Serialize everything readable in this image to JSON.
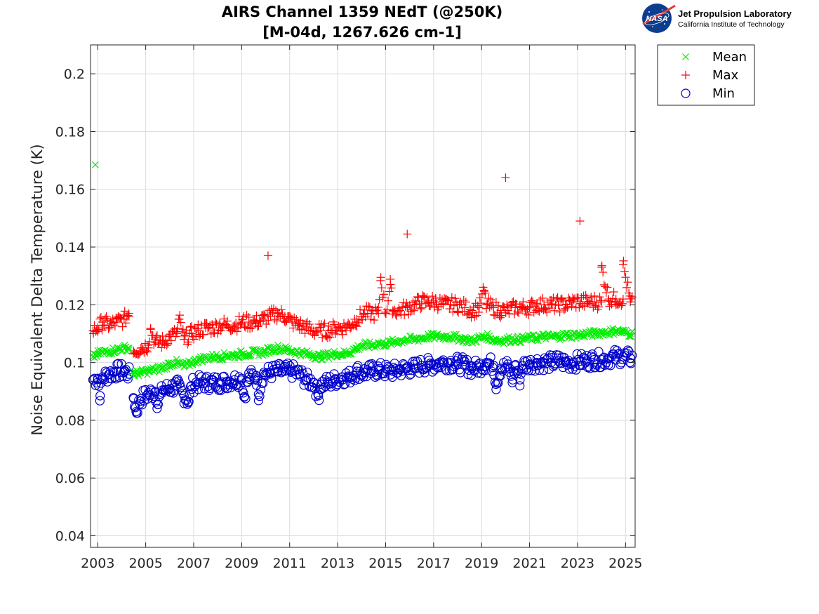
{
  "logo": {
    "badge_text": "NASA",
    "org_name": "Jet Propulsion Laboratory",
    "org_sub": "California Institute of Technology"
  },
  "chart_data": {
    "type": "scatter",
    "title_line1": "AIRS Channel 1359 NEdT (@250K)",
    "title_line2": "[M-04d, 1267.626 cm-1]",
    "xlabel": "",
    "ylabel": "Noise Equivalent Delta Temperature (K)",
    "xlim": [
      2002.7,
      2025.4
    ],
    "ylim": [
      0.036,
      0.21
    ],
    "x_ticks": [
      2003,
      2005,
      2007,
      2009,
      2011,
      2013,
      2015,
      2017,
      2019,
      2021,
      2023,
      2025
    ],
    "x_tick_labels": [
      "2003",
      "2005",
      "2007",
      "2009",
      "2011",
      "2013",
      "2015",
      "2017",
      "2019",
      "2021",
      "2023",
      "2025"
    ],
    "y_ticks": [
      0.04,
      0.06,
      0.08,
      0.1,
      0.12,
      0.14,
      0.16,
      0.18,
      0.2
    ],
    "y_tick_labels": [
      "0.04",
      "0.06",
      "0.08",
      "0.1",
      "0.12",
      "0.14",
      "0.16",
      "0.18",
      "0.2"
    ],
    "grid": true,
    "legend_position": "outside-top-right",
    "series": [
      {
        "name": "Mean",
        "marker": "x",
        "color": "#00ee00",
        "points": [
          [
            2002.8,
            0.102
          ],
          [
            2003.0,
            0.103
          ],
          [
            2003.2,
            0.1035
          ],
          [
            2003.5,
            0.104
          ],
          [
            2003.8,
            0.1045
          ],
          [
            2004.1,
            0.105
          ],
          [
            2004.3,
            0.105
          ],
          [
            2004.5,
            0.096
          ],
          [
            2004.8,
            0.0965
          ],
          [
            2005.1,
            0.097
          ],
          [
            2005.4,
            0.0975
          ],
          [
            2005.7,
            0.098
          ],
          [
            2006.0,
            0.0995
          ],
          [
            2006.3,
            0.1
          ],
          [
            2006.6,
            0.0985
          ],
          [
            2006.9,
            0.1
          ],
          [
            2007.2,
            0.101
          ],
          [
            2007.5,
            0.1015
          ],
          [
            2007.8,
            0.102
          ],
          [
            2008.1,
            0.102
          ],
          [
            2008.4,
            0.1025
          ],
          [
            2008.7,
            0.1025
          ],
          [
            2009.0,
            0.103
          ],
          [
            2009.3,
            0.103
          ],
          [
            2009.6,
            0.1035
          ],
          [
            2009.9,
            0.1035
          ],
          [
            2010.2,
            0.1045
          ],
          [
            2010.5,
            0.105
          ],
          [
            2010.8,
            0.1045
          ],
          [
            2011.1,
            0.104
          ],
          [
            2011.4,
            0.1035
          ],
          [
            2011.7,
            0.103
          ],
          [
            2012.0,
            0.1025
          ],
          [
            2012.3,
            0.102
          ],
          [
            2012.6,
            0.1025
          ],
          [
            2012.9,
            0.103
          ],
          [
            2013.2,
            0.103
          ],
          [
            2013.5,
            0.1035
          ],
          [
            2013.8,
            0.105
          ],
          [
            2014.1,
            0.106
          ],
          [
            2014.4,
            0.106
          ],
          [
            2014.7,
            0.1065
          ],
          [
            2015.0,
            0.1065
          ],
          [
            2015.3,
            0.107
          ],
          [
            2015.6,
            0.1075
          ],
          [
            2015.9,
            0.108
          ],
          [
            2016.2,
            0.108
          ],
          [
            2016.5,
            0.1085
          ],
          [
            2016.8,
            0.109
          ],
          [
            2017.1,
            0.109
          ],
          [
            2017.4,
            0.109
          ],
          [
            2017.7,
            0.109
          ],
          [
            2018.0,
            0.1085
          ],
          [
            2018.3,
            0.108
          ],
          [
            2018.6,
            0.1075
          ],
          [
            2018.9,
            0.1085
          ],
          [
            2019.2,
            0.109
          ],
          [
            2019.5,
            0.108
          ],
          [
            2019.8,
            0.1075
          ],
          [
            2020.1,
            0.108
          ],
          [
            2020.4,
            0.108
          ],
          [
            2020.7,
            0.108
          ],
          [
            2021.0,
            0.1085
          ],
          [
            2021.3,
            0.1085
          ],
          [
            2021.6,
            0.109
          ],
          [
            2021.9,
            0.109
          ],
          [
            2022.2,
            0.109
          ],
          [
            2022.5,
            0.1095
          ],
          [
            2022.8,
            0.1095
          ],
          [
            2023.1,
            0.1095
          ],
          [
            2023.4,
            0.11
          ],
          [
            2023.7,
            0.11
          ],
          [
            2024.0,
            0.1105
          ],
          [
            2024.3,
            0.1105
          ],
          [
            2024.6,
            0.111
          ],
          [
            2024.9,
            0.1105
          ],
          [
            2025.2,
            0.11
          ],
          [
            2002.9,
            0.1685
          ]
        ]
      },
      {
        "name": "Max",
        "marker": "+",
        "color": "#ff0000",
        "points": [
          [
            2002.8,
            0.111
          ],
          [
            2003.0,
            0.112
          ],
          [
            2003.2,
            0.114
          ],
          [
            2003.5,
            0.113
          ],
          [
            2003.8,
            0.114
          ],
          [
            2004.1,
            0.115
          ],
          [
            2004.3,
            0.117
          ],
          [
            2004.5,
            0.104
          ],
          [
            2004.8,
            0.105
          ],
          [
            2005.1,
            0.106
          ],
          [
            2005.4,
            0.107
          ],
          [
            2005.7,
            0.107
          ],
          [
            2006.0,
            0.109
          ],
          [
            2006.3,
            0.11
          ],
          [
            2006.6,
            0.108
          ],
          [
            2006.9,
            0.11
          ],
          [
            2007.2,
            0.111
          ],
          [
            2007.5,
            0.112
          ],
          [
            2007.8,
            0.112
          ],
          [
            2008.1,
            0.113
          ],
          [
            2008.4,
            0.113
          ],
          [
            2008.7,
            0.113
          ],
          [
            2009.0,
            0.114
          ],
          [
            2009.3,
            0.114
          ],
          [
            2009.6,
            0.114
          ],
          [
            2009.9,
            0.115
          ],
          [
            2010.2,
            0.116
          ],
          [
            2010.5,
            0.117
          ],
          [
            2010.8,
            0.116
          ],
          [
            2011.1,
            0.114
          ],
          [
            2011.4,
            0.113
          ],
          [
            2011.7,
            0.112
          ],
          [
            2012.0,
            0.111
          ],
          [
            2012.3,
            0.111
          ],
          [
            2012.6,
            0.111
          ],
          [
            2012.9,
            0.112
          ],
          [
            2013.2,
            0.112
          ],
          [
            2013.5,
            0.113
          ],
          [
            2013.8,
            0.115
          ],
          [
            2014.1,
            0.117
          ],
          [
            2014.4,
            0.117
          ],
          [
            2014.7,
            0.117
          ],
          [
            2015.0,
            0.117
          ],
          [
            2015.3,
            0.118
          ],
          [
            2015.6,
            0.118
          ],
          [
            2015.9,
            0.119
          ],
          [
            2016.2,
            0.12
          ],
          [
            2016.5,
            0.121
          ],
          [
            2016.8,
            0.121
          ],
          [
            2017.1,
            0.121
          ],
          [
            2017.4,
            0.12
          ],
          [
            2017.7,
            0.12
          ],
          [
            2018.0,
            0.12
          ],
          [
            2018.3,
            0.119
          ],
          [
            2018.6,
            0.118
          ],
          [
            2018.9,
            0.119
          ],
          [
            2019.2,
            0.12
          ],
          [
            2019.5,
            0.119
          ],
          [
            2019.8,
            0.118
          ],
          [
            2020.1,
            0.118
          ],
          [
            2020.4,
            0.119
          ],
          [
            2020.7,
            0.119
          ],
          [
            2021.0,
            0.119
          ],
          [
            2021.3,
            0.12
          ],
          [
            2021.6,
            0.12
          ],
          [
            2021.9,
            0.12
          ],
          [
            2022.2,
            0.12
          ],
          [
            2022.5,
            0.12
          ],
          [
            2022.8,
            0.121
          ],
          [
            2023.1,
            0.121
          ],
          [
            2023.4,
            0.121
          ],
          [
            2023.7,
            0.121
          ],
          [
            2024.0,
            0.121
          ],
          [
            2024.3,
            0.122
          ],
          [
            2024.6,
            0.122
          ],
          [
            2024.9,
            0.122
          ],
          [
            2025.2,
            0.121
          ],
          [
            2010.1,
            0.137
          ],
          [
            2014.8,
            0.1295
          ],
          [
            2015.2,
            0.127
          ],
          [
            2015.9,
            0.1445
          ],
          [
            2020.0,
            0.164
          ],
          [
            2023.1,
            0.149
          ],
          [
            2024.0,
            0.133
          ],
          [
            2024.9,
            0.134
          ],
          [
            2019.1,
            0.125
          ],
          [
            2005.2,
            0.1115
          ],
          [
            2006.4,
            0.115
          ]
        ]
      },
      {
        "name": "Min",
        "marker": "o",
        "color": "#0000cc",
        "points": [
          [
            2002.8,
            0.094
          ],
          [
            2003.0,
            0.0945
          ],
          [
            2003.2,
            0.095
          ],
          [
            2003.5,
            0.096
          ],
          [
            2003.8,
            0.097
          ],
          [
            2004.1,
            0.097
          ],
          [
            2004.3,
            0.096
          ],
          [
            2004.5,
            0.0875
          ],
          [
            2004.8,
            0.0875
          ],
          [
            2005.1,
            0.089
          ],
          [
            2005.4,
            0.09
          ],
          [
            2005.7,
            0.0905
          ],
          [
            2006.0,
            0.091
          ],
          [
            2006.3,
            0.092
          ],
          [
            2006.6,
            0.0885
          ],
          [
            2006.9,
            0.092
          ],
          [
            2007.2,
            0.093
          ],
          [
            2007.5,
            0.093
          ],
          [
            2007.8,
            0.093
          ],
          [
            2008.1,
            0.093
          ],
          [
            2008.4,
            0.0935
          ],
          [
            2008.7,
            0.094
          ],
          [
            2009.0,
            0.0945
          ],
          [
            2009.3,
            0.095
          ],
          [
            2009.6,
            0.0955
          ],
          [
            2009.9,
            0.096
          ],
          [
            2010.2,
            0.0965
          ],
          [
            2010.5,
            0.097
          ],
          [
            2010.8,
            0.097
          ],
          [
            2011.1,
            0.097
          ],
          [
            2011.4,
            0.096
          ],
          [
            2011.7,
            0.094
          ],
          [
            2012.0,
            0.093
          ],
          [
            2012.3,
            0.0925
          ],
          [
            2012.6,
            0.093
          ],
          [
            2012.9,
            0.094
          ],
          [
            2013.2,
            0.095
          ],
          [
            2013.5,
            0.095
          ],
          [
            2013.8,
            0.097
          ],
          [
            2014.1,
            0.0965
          ],
          [
            2014.4,
            0.097
          ],
          [
            2014.7,
            0.0975
          ],
          [
            2015.0,
            0.097
          ],
          [
            2015.3,
            0.097
          ],
          [
            2015.6,
            0.0975
          ],
          [
            2015.9,
            0.098
          ],
          [
            2016.2,
            0.098
          ],
          [
            2016.5,
            0.099
          ],
          [
            2016.8,
            0.099
          ],
          [
            2017.1,
            0.0995
          ],
          [
            2017.4,
            0.1
          ],
          [
            2017.7,
            0.1
          ],
          [
            2018.0,
            0.0995
          ],
          [
            2018.3,
            0.099
          ],
          [
            2018.6,
            0.098
          ],
          [
            2018.9,
            0.0985
          ],
          [
            2019.2,
            0.1
          ],
          [
            2019.5,
            0.099
          ],
          [
            2019.8,
            0.098
          ],
          [
            2020.1,
            0.0985
          ],
          [
            2020.4,
            0.099
          ],
          [
            2020.7,
            0.099
          ],
          [
            2021.0,
            0.0995
          ],
          [
            2021.3,
            0.1
          ],
          [
            2021.6,
            0.1
          ],
          [
            2021.9,
            0.1
          ],
          [
            2022.2,
            0.1005
          ],
          [
            2022.5,
            0.1
          ],
          [
            2022.8,
            0.1
          ],
          [
            2023.1,
            0.1005
          ],
          [
            2023.4,
            0.1005
          ],
          [
            2023.7,
            0.101
          ],
          [
            2024.0,
            0.101
          ],
          [
            2024.3,
            0.1015
          ],
          [
            2024.6,
            0.102
          ],
          [
            2024.9,
            0.102
          ],
          [
            2025.2,
            0.1015
          ],
          [
            2003.1,
            0.0885
          ],
          [
            2004.6,
            0.083
          ],
          [
            2005.5,
            0.0855
          ],
          [
            2006.8,
            0.0865
          ],
          [
            2009.1,
            0.088
          ],
          [
            2009.7,
            0.089
          ],
          [
            2012.2,
            0.0885
          ],
          [
            2019.6,
            0.0925
          ],
          [
            2020.3,
            0.094
          ],
          [
            2020.6,
            0.094
          ]
        ]
      }
    ]
  }
}
